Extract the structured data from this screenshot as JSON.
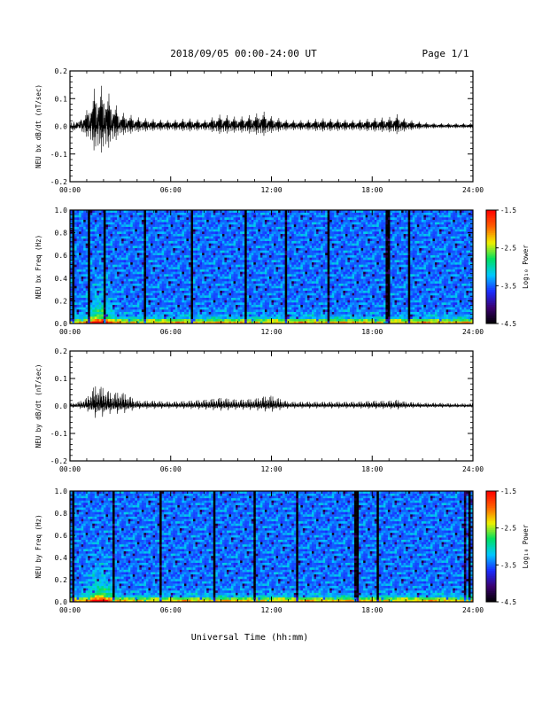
{
  "header": {
    "title": "2018/09/05  00:00-24:00 UT",
    "page": "Page 1/1"
  },
  "footer": {
    "xlabel": "Universal Time (hh:mm)"
  },
  "colors": {
    "trace": "#000000",
    "colormap": [
      "#000000",
      "#3a0070",
      "#1a2cff",
      "#00c8ff",
      "#00e060",
      "#f0f000",
      "#ff6000",
      "#ff0000"
    ]
  },
  "chart_data": [
    {
      "type": "line",
      "ylabel": "NEU bx dB/dt (nT/sec)",
      "xlim": [
        "00:00",
        "24:00"
      ],
      "x_ticks": [
        "00:00",
        "06:00",
        "12:00",
        "18:00",
        "24:00"
      ],
      "ylim": [
        -0.2,
        0.2
      ],
      "y_ticks": [
        "-0.2",
        "-0.1",
        "0.0",
        "0.1",
        "0.2"
      ],
      "envelope": {
        "hours": [
          0,
          0.5,
          1.0,
          1.5,
          2.0,
          2.5,
          3.0,
          3.5,
          4.0,
          5.0,
          6.0,
          7.0,
          8.0,
          9.0,
          10.0,
          11.0,
          11.5,
          12.0,
          13.0,
          14.0,
          15.0,
          16.0,
          17.0,
          18.0,
          19.0,
          19.5,
          20.0,
          21.0,
          22.0,
          23.0,
          24.0
        ],
        "amplitude": [
          0.02,
          0.035,
          0.08,
          0.2,
          0.2,
          0.14,
          0.07,
          0.06,
          0.045,
          0.035,
          0.03,
          0.04,
          0.03,
          0.06,
          0.045,
          0.06,
          0.075,
          0.05,
          0.03,
          0.03,
          0.04,
          0.035,
          0.03,
          0.04,
          0.045,
          0.06,
          0.035,
          0.02,
          0.015,
          0.015,
          0.015
        ]
      }
    },
    {
      "type": "heatmap",
      "ylabel": "NEU bx Freq (Hz)",
      "xlim": [
        "00:00",
        "24:00"
      ],
      "x_ticks": [
        "00:00",
        "06:00",
        "12:00",
        "18:00",
        "24:00"
      ],
      "ylim": [
        0.0,
        1.0
      ],
      "y_ticks": [
        "0.0",
        "0.2",
        "0.4",
        "0.6",
        "0.8",
        "1.0"
      ],
      "colorbar": {
        "label": "Log₁₀ Power",
        "range": [
          -4.5,
          -1.5
        ],
        "ticks": [
          "-1.5",
          "-2.5",
          "-3.5",
          "-4.5"
        ]
      }
    },
    {
      "type": "line",
      "ylabel": "NEU by dB/dt (nT/sec)",
      "xlim": [
        "00:00",
        "24:00"
      ],
      "x_ticks": [
        "00:00",
        "06:00",
        "12:00",
        "18:00",
        "24:00"
      ],
      "ylim": [
        -0.2,
        0.2
      ],
      "y_ticks": [
        "-0.2",
        "-0.1",
        "0.0",
        "0.1",
        "0.2"
      ],
      "envelope": {
        "hours": [
          0,
          0.5,
          1.0,
          1.5,
          2.0,
          2.5,
          3.0,
          3.5,
          4.0,
          5.0,
          6.0,
          7.0,
          8.0,
          9.0,
          10.0,
          11.0,
          11.5,
          12.0,
          13.0,
          14.0,
          15.0,
          16.0,
          17.0,
          18.0,
          19.0,
          19.5,
          20.0,
          21.0,
          22.0,
          23.0,
          24.0
        ],
        "amplitude": [
          0.012,
          0.02,
          0.04,
          0.1,
          0.09,
          0.06,
          0.07,
          0.05,
          0.025,
          0.025,
          0.02,
          0.025,
          0.03,
          0.04,
          0.03,
          0.035,
          0.045,
          0.05,
          0.02,
          0.02,
          0.02,
          0.02,
          0.02,
          0.025,
          0.025,
          0.03,
          0.02,
          0.015,
          0.015,
          0.012,
          0.012
        ]
      }
    },
    {
      "type": "heatmap",
      "ylabel": "NEU by Freq (Hz)",
      "xlim": [
        "00:00",
        "24:00"
      ],
      "x_ticks": [
        "00:00",
        "06:00",
        "12:00",
        "18:00",
        "24:00"
      ],
      "ylim": [
        0.0,
        1.0
      ],
      "y_ticks": [
        "0.0",
        "0.2",
        "0.4",
        "0.6",
        "0.8",
        "1.0"
      ],
      "colorbar": {
        "label": "Log₁₀ Power",
        "range": [
          -4.5,
          -1.5
        ],
        "ticks": [
          "-1.5",
          "-2.5",
          "-3.5",
          "-4.5"
        ]
      }
    }
  ]
}
